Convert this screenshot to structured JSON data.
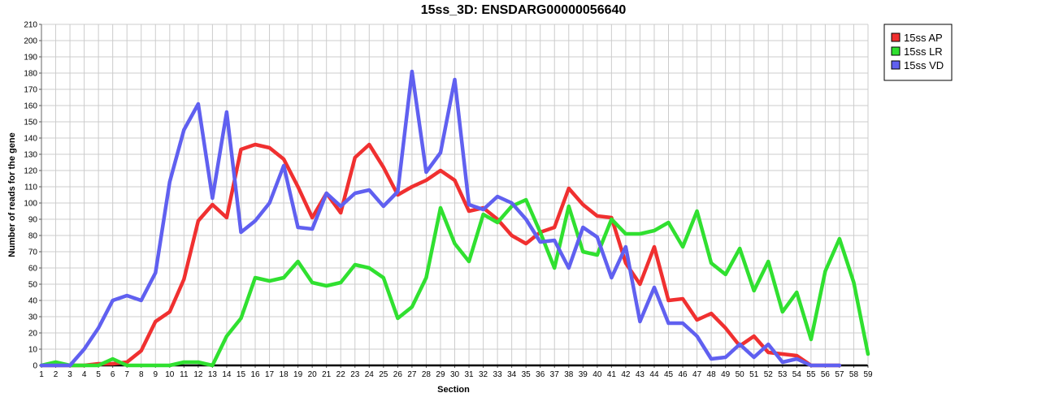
{
  "chart_data": {
    "type": "line",
    "title": "15ss_3D: ENSDARG00000056640",
    "xlabel": "Section",
    "ylabel": "Number of reads for the gene",
    "x": [
      1,
      2,
      3,
      4,
      5,
      6,
      7,
      8,
      9,
      10,
      11,
      12,
      13,
      14,
      15,
      16,
      17,
      18,
      19,
      20,
      21,
      22,
      23,
      24,
      25,
      26,
      27,
      28,
      29,
      30,
      31,
      32,
      33,
      34,
      35,
      36,
      37,
      38,
      39,
      40,
      41,
      42,
      43,
      44,
      45,
      46,
      47,
      48,
      49,
      50,
      51,
      52,
      53,
      54,
      55,
      56,
      57,
      58,
      59
    ],
    "xlim": [
      1,
      59
    ],
    "ylim": [
      0,
      210
    ],
    "yticks": [
      0,
      10,
      20,
      30,
      40,
      50,
      60,
      70,
      80,
      90,
      100,
      110,
      120,
      130,
      140,
      150,
      160,
      170,
      180,
      190,
      200,
      210
    ],
    "grid": true,
    "legend_position": "top-right",
    "series": [
      {
        "name": "15ss AP",
        "color": "#f03030",
        "values": [
          0,
          0,
          0,
          0,
          1,
          1,
          2,
          9,
          27,
          33,
          53,
          89,
          99,
          91,
          133,
          136,
          134,
          127,
          110,
          91,
          106,
          94,
          128,
          136,
          122,
          105,
          110,
          114,
          120,
          114,
          95,
          97,
          90,
          80,
          75,
          82,
          85,
          109,
          99,
          92,
          91,
          63,
          50,
          73,
          40,
          41,
          28,
          32,
          23,
          12,
          18,
          8,
          7,
          6,
          0,
          0,
          0,
          null,
          null
        ]
      },
      {
        "name": "15ss LR",
        "color": "#30e030",
        "values": [
          0,
          2,
          0,
          0,
          0,
          4,
          0,
          0,
          0,
          0,
          2,
          2,
          0,
          18,
          29,
          54,
          52,
          54,
          64,
          51,
          49,
          51,
          62,
          60,
          54,
          29,
          36,
          54,
          97,
          75,
          64,
          93,
          88,
          98,
          102,
          82,
          60,
          98,
          70,
          68,
          90,
          81,
          81,
          83,
          88,
          73,
          95,
          63,
          56,
          72,
          46,
          64,
          33,
          45,
          16,
          58,
          78,
          51,
          7
        ]
      },
      {
        "name": "15ss VD",
        "color": "#6060f0",
        "values": [
          0,
          0,
          0,
          10,
          23,
          40,
          43,
          40,
          57,
          113,
          145,
          161,
          103,
          156,
          82,
          89,
          100,
          123,
          85,
          84,
          106,
          98,
          106,
          108,
          98,
          107,
          181,
          119,
          131,
          176,
          99,
          96,
          104,
          100,
          90,
          76,
          77,
          60,
          85,
          79,
          54,
          73,
          27,
          48,
          26,
          26,
          18,
          4,
          5,
          13,
          5,
          13,
          2,
          4,
          0,
          0,
          0,
          null,
          null
        ]
      }
    ]
  }
}
